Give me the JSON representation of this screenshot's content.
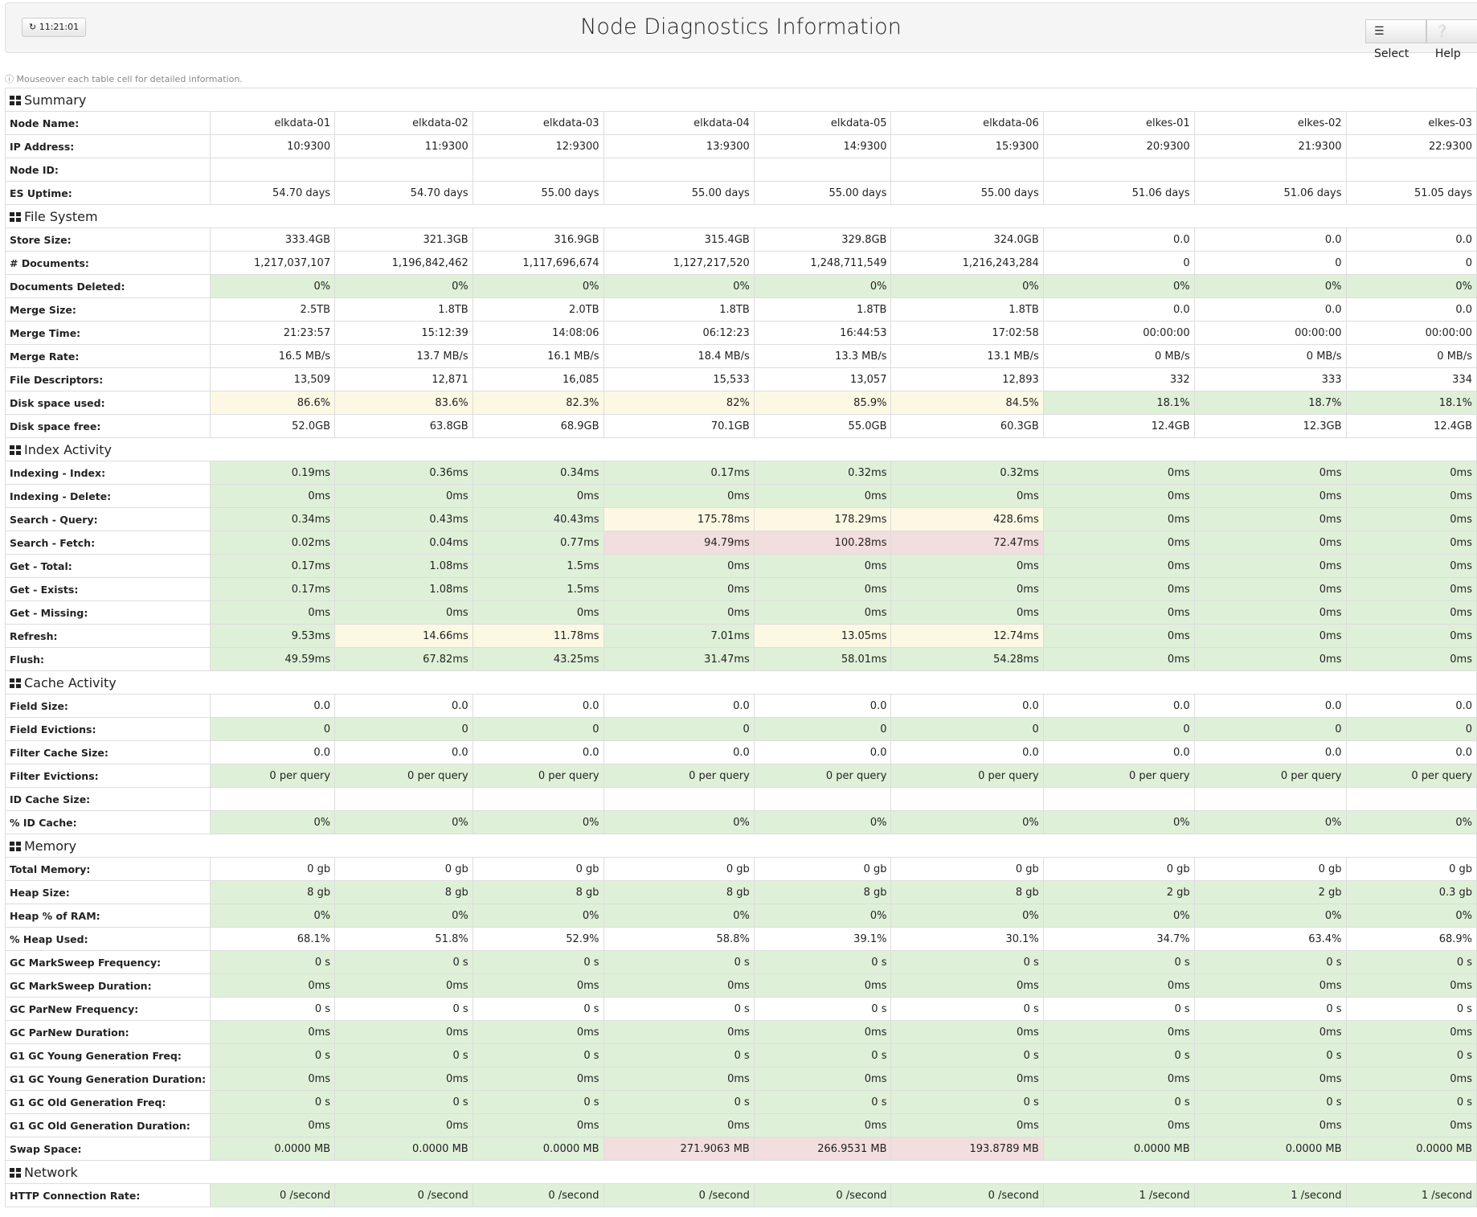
{
  "header": {
    "time": "11:21:01",
    "title": "Node Diagnostics Information",
    "buttons": [
      "Select",
      "Help"
    ]
  },
  "note": "Mouseover each table cell for detailed information.",
  "sections": [
    {
      "title": "Summary",
      "rows": [
        {
          "label": "Node Name:",
          "cells": [
            "elkdata-01",
            "elkdata-02",
            "elkdata-03",
            "elkdata-04",
            "elkdata-05",
            "elkdata-06",
            "elkes-01",
            "elkes-02",
            "elkes-03"
          ]
        },
        {
          "label": "IP Address:",
          "cells": [
            "10:9300",
            "11:9300",
            "12:9300",
            "13:9300",
            "14:9300",
            "15:9300",
            "20:9300",
            "21:9300",
            "22:9300"
          ]
        },
        {
          "label": "Node ID:",
          "cells": [
            null,
            null,
            null,
            null,
            null,
            null,
            null,
            null,
            null
          ]
        },
        {
          "label": "ES Uptime:",
          "cells": [
            "54.70 days",
            "54.70 days",
            "55.00 days",
            "55.00 days",
            "55.00 days",
            "55.00 days",
            "51.06 days",
            "51.06 days",
            "51.05 days"
          ]
        }
      ]
    },
    {
      "title": "File System",
      "rows": [
        {
          "label": "Store Size:",
          "cells": [
            "333.4GB",
            "321.3GB",
            "316.9GB",
            "315.4GB",
            "329.8GB",
            "324.0GB",
            "0.0",
            "0.0",
            "0.0"
          ]
        },
        {
          "label": "# Documents:",
          "cells": [
            "1,217,037,107",
            "1,196,842,462",
            "1,117,696,674",
            "1,127,217,520",
            "1,248,711,549",
            "1,216,243,284",
            "0",
            "0",
            "0"
          ]
        },
        {
          "label": "Documents Deleted:",
          "color": "#dff0d8",
          "cells": [
            "0%",
            "0%",
            "0%",
            "0%",
            "0%",
            "0%",
            "0%",
            "0%",
            "0%"
          ]
        },
        {
          "label": "Merge Size:",
          "cells": [
            "2.5TB",
            "1.8TB",
            "2.0TB",
            "1.8TB",
            "1.8TB",
            "1.8TB",
            "0.0",
            "0.0",
            "0.0"
          ]
        },
        {
          "label": "Merge Time:",
          "cells": [
            "21:23:57",
            "15:12:39",
            "14:08:06",
            "06:12:23",
            "16:44:53",
            "17:02:58",
            "00:00:00",
            "00:00:00",
            "00:00:00"
          ]
        },
        {
          "label": "Merge Rate:",
          "cells": [
            "16.5 MB/s",
            "13.7 MB/s",
            "16.1 MB/s",
            "18.4 MB/s",
            "13.3 MB/s",
            "13.1 MB/s",
            "0 MB/s",
            "0 MB/s",
            "0 MB/s"
          ]
        },
        {
          "label": "File Descriptors:",
          "cells": [
            "13,509",
            "12,871",
            "16,085",
            "15,533",
            "13,057",
            "12,893",
            "332",
            "333",
            "334"
          ]
        },
        {
          "label": "Disk space used:",
          "colors": [
            "#fcf8e3",
            "#fcf8e3",
            "#fcf8e3",
            "#fcf8e3",
            "#fcf8e3",
            "#fcf8e3",
            "#dff0d8",
            "#dff0d8",
            "#dff0d8"
          ],
          "cells": [
            "86.6%",
            "83.6%",
            "82.3%",
            "82%",
            "85.9%",
            "84.5%",
            "18.1%",
            "18.7%",
            "18.1%"
          ]
        },
        {
          "label": "Disk space free:",
          "cells": [
            "52.0GB",
            "63.8GB",
            "68.9GB",
            "70.1GB",
            "55.0GB",
            "60.3GB",
            "12.4GB",
            "12.3GB",
            "12.4GB"
          ]
        }
      ]
    },
    {
      "title": "Index Activity",
      "rows": [
        {
          "label": "Indexing - Index:",
          "color": "#dff0d8",
          "cells": [
            "0.19ms",
            "0.36ms",
            "0.34ms",
            "0.17ms",
            "0.32ms",
            "0.32ms",
            "0ms",
            "0ms",
            "0ms"
          ]
        },
        {
          "label": "Indexing - Delete:",
          "color": "#dff0d8",
          "cells": [
            "0ms",
            "0ms",
            "0ms",
            "0ms",
            "0ms",
            "0ms",
            "0ms",
            "0ms",
            "0ms"
          ]
        },
        {
          "label": "Search - Query:",
          "colors": [
            "#dff0d8",
            "#dff0d8",
            "#dff0d8",
            "#fcf8e3",
            "#fcf8e3",
            "#fcf8e3",
            "#dff0d8",
            "#dff0d8",
            "#dff0d8"
          ],
          "cells": [
            "0.34ms",
            "0.43ms",
            "40.43ms",
            "175.78ms",
            "178.29ms",
            "428.6ms",
            "0ms",
            "0ms",
            "0ms"
          ]
        },
        {
          "label": "Search - Fetch:",
          "colors": [
            "#dff0d8",
            "#dff0d8",
            "#dff0d8",
            "#f2dede",
            "#f2dede",
            "#f2dede",
            "#dff0d8",
            "#dff0d8",
            "#dff0d8"
          ],
          "cells": [
            "0.02ms",
            "0.04ms",
            "0.77ms",
            "94.79ms",
            "100.28ms",
            "72.47ms",
            "0ms",
            "0ms",
            "0ms"
          ]
        },
        {
          "label": "Get - Total:",
          "color": "#dff0d8",
          "cells": [
            "0.17ms",
            "1.08ms",
            "1.5ms",
            "0ms",
            "0ms",
            "0ms",
            "0ms",
            "0ms",
            "0ms"
          ]
        },
        {
          "label": "Get - Exists:",
          "color": "#dff0d8",
          "cells": [
            "0.17ms",
            "1.08ms",
            "1.5ms",
            "0ms",
            "0ms",
            "0ms",
            "0ms",
            "0ms",
            "0ms"
          ]
        },
        {
          "label": "Get - Missing:",
          "color": "#dff0d8",
          "cells": [
            "0ms",
            "0ms",
            "0ms",
            "0ms",
            "0ms",
            "0ms",
            "0ms",
            "0ms",
            "0ms"
          ]
        },
        {
          "label": "Refresh:",
          "colors": [
            "#dff0d8",
            "#fcf8e3",
            "#fcf8e3",
            "#dff0d8",
            "#fcf8e3",
            "#fcf8e3",
            "#dff0d8",
            "#dff0d8",
            "#dff0d8"
          ],
          "cells": [
            "9.53ms",
            "14.66ms",
            "11.78ms",
            "7.01ms",
            "13.05ms",
            "12.74ms",
            "0ms",
            "0ms",
            "0ms"
          ]
        },
        {
          "label": "Flush:",
          "color": "#dff0d8",
          "cells": [
            "49.59ms",
            "67.82ms",
            "43.25ms",
            "31.47ms",
            "58.01ms",
            "54.28ms",
            "0ms",
            "0ms",
            "0ms"
          ]
        }
      ]
    },
    {
      "title": "Cache Activity",
      "rows": [
        {
          "label": "Field Size:",
          "cells": [
            "0.0",
            "0.0",
            "0.0",
            "0.0",
            "0.0",
            "0.0",
            "0.0",
            "0.0",
            "0.0"
          ]
        },
        {
          "label": "Field Evictions:",
          "color": "#dff0d8",
          "cells": [
            "0",
            "0",
            "0",
            "0",
            "0",
            "0",
            "0",
            "0",
            "0"
          ]
        },
        {
          "label": "Filter Cache Size:",
          "cells": [
            "0.0",
            "0.0",
            "0.0",
            "0.0",
            "0.0",
            "0.0",
            "0.0",
            "0.0",
            "0.0"
          ]
        },
        {
          "label": "Filter Evictions:",
          "color": "#dff0d8",
          "cells": [
            "0 per query",
            "0 per query",
            "0 per query",
            "0 per query",
            "0 per query",
            "0 per query",
            "0 per query",
            "0 per query",
            "0 per query"
          ]
        },
        {
          "label": "ID Cache Size:",
          "cells": [
            null,
            null,
            null,
            null,
            null,
            null,
            null,
            null,
            null
          ]
        },
        {
          "label": "% ID Cache:",
          "color": "#dff0d8",
          "cells": [
            "0%",
            "0%",
            "0%",
            "0%",
            "0%",
            "0%",
            "0%",
            "0%",
            "0%"
          ]
        }
      ]
    },
    {
      "title": "Memory",
      "rows": [
        {
          "label": "Total Memory:",
          "cells": [
            "0 gb",
            "0 gb",
            "0 gb",
            "0 gb",
            "0 gb",
            "0 gb",
            "0 gb",
            "0 gb",
            "0 gb"
          ]
        },
        {
          "label": "Heap Size:",
          "color": "#dff0d8",
          "cells": [
            "8 gb",
            "8 gb",
            "8 gb",
            "8 gb",
            "8 gb",
            "8 gb",
            "2 gb",
            "2 gb",
            "0.3 gb"
          ]
        },
        {
          "label": "Heap % of RAM:",
          "color": "#dff0d8",
          "cells": [
            "0%",
            "0%",
            "0%",
            "0%",
            "0%",
            "0%",
            "0%",
            "0%",
            "0%"
          ]
        },
        {
          "label": "% Heap Used:",
          "cells": [
            "68.1%",
            "51.8%",
            "52.9%",
            "58.8%",
            "39.1%",
            "30.1%",
            "34.7%",
            "63.4%",
            "68.9%"
          ]
        },
        {
          "label": "GC MarkSweep Frequency:",
          "color": "#dff0d8",
          "cells": [
            "0 s",
            "0 s",
            "0 s",
            "0 s",
            "0 s",
            "0 s",
            "0 s",
            "0 s",
            "0 s"
          ]
        },
        {
          "label": "GC MarkSweep Duration:",
          "color": "#dff0d8",
          "cells": [
            "0ms",
            "0ms",
            "0ms",
            "0ms",
            "0ms",
            "0ms",
            "0ms",
            "0ms",
            "0ms"
          ]
        },
        {
          "label": "GC ParNew Frequency:",
          "cells": [
            "0 s",
            "0 s",
            "0 s",
            "0 s",
            "0 s",
            "0 s",
            "0 s",
            "0 s",
            "0 s"
          ]
        },
        {
          "label": "GC ParNew Duration:",
          "color": "#dff0d8",
          "cells": [
            "0ms",
            "0ms",
            "0ms",
            "0ms",
            "0ms",
            "0ms",
            "0ms",
            "0ms",
            "0ms"
          ]
        },
        {
          "label": "G1 GC Young Generation Freq:",
          "color": "#dff0d8",
          "cells": [
            "0 s",
            "0 s",
            "0 s",
            "0 s",
            "0 s",
            "0 s",
            "0 s",
            "0 s",
            "0 s"
          ]
        },
        {
          "label": "G1 GC Young Generation Duration:",
          "color": "#dff0d8",
          "cells": [
            "0ms",
            "0ms",
            "0ms",
            "0ms",
            "0ms",
            "0ms",
            "0ms",
            "0ms",
            "0ms"
          ]
        },
        {
          "label": "G1 GC Old Generation Freq:",
          "color": "#dff0d8",
          "cells": [
            "0 s",
            "0 s",
            "0 s",
            "0 s",
            "0 s",
            "0 s",
            "0 s",
            "0 s",
            "0 s"
          ]
        },
        {
          "label": "G1 GC Old Generation Duration:",
          "color": "#dff0d8",
          "cells": [
            "0ms",
            "0ms",
            "0ms",
            "0ms",
            "0ms",
            "0ms",
            "0ms",
            "0ms",
            "0ms"
          ]
        },
        {
          "label": "Swap Space:",
          "colors": [
            "#dff0d8",
            "#dff0d8",
            "#dff0d8",
            "#f2dede",
            "#f2dede",
            "#f2dede",
            "#dff0d8",
            "#dff0d8",
            "#dff0d8"
          ],
          "cells": [
            "0.0000 MB",
            "0.0000 MB",
            "0.0000 MB",
            "271.9063 MB",
            "266.9531 MB",
            "193.8789 MB",
            "0.0000 MB",
            "0.0000 MB",
            "0.0000 MB"
          ]
        }
      ]
    },
    {
      "title": "Network",
      "rows": [
        {
          "label": "HTTP Connection Rate:",
          "color": "#dff0d8",
          "cells": [
            "0 /second",
            "0 /second",
            "0 /second",
            "0 /second",
            "0 /second",
            "0 /second",
            "1 /second",
            "1 /second",
            "1 /second"
          ]
        }
      ]
    }
  ]
}
